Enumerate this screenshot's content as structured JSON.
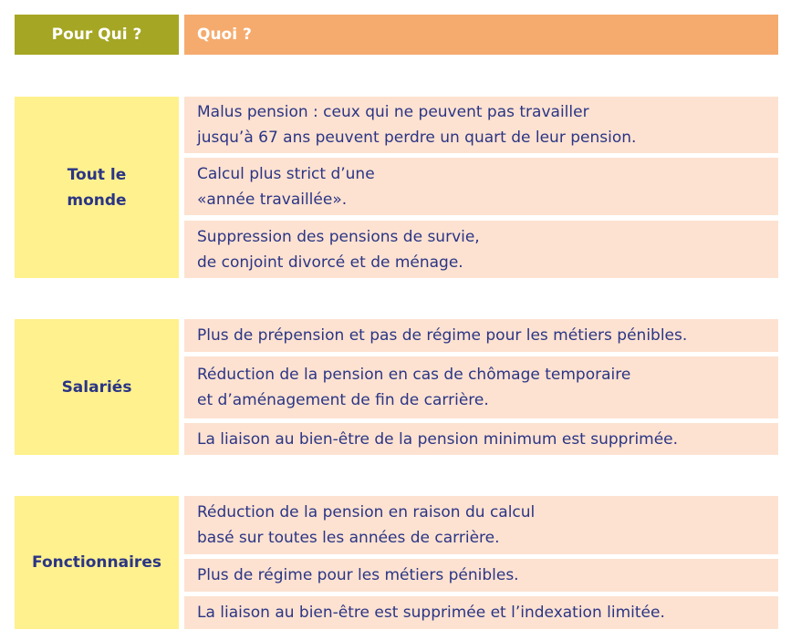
{
  "header": {
    "who": "Pour Qui ?",
    "what": "Quoi ?"
  },
  "groups": [
    {
      "who": "Tout le\nmonde",
      "items": [
        "Malus pension :  ceux qui ne peuvent pas travailler\njusqu’à 67 ans peuvent perdre un quart de leur pension.",
        "Calcul plus strict d’une\n«année travaillée».",
        "Suppression des pensions de survie,\nde conjoint divorcé et de ménage."
      ]
    },
    {
      "who": "Salariés",
      "items": [
        "Plus de prépension et pas de régime pour les métiers pénibles.",
        "Réduction de la pension en cas de chômage temporaire\net d’aménagement de fin de carrière.",
        "La liaison au bien-être de la pension minimum est supprimée."
      ]
    },
    {
      "who": "Fonctionnaires",
      "items": [
        "Réduction de la pension en raison du calcul\nbasé sur toutes les années de carrière.",
        "Plus de régime pour les métiers pénibles.",
        "La liaison au bien-être est supprimée et l’indexation limitée."
      ]
    }
  ],
  "colors": {
    "header_who": "#a5a623",
    "header_what": "#f5ab6e",
    "who_bg": "#fef18e",
    "what_bg": "#fde2d1",
    "text": "#2b3585"
  }
}
